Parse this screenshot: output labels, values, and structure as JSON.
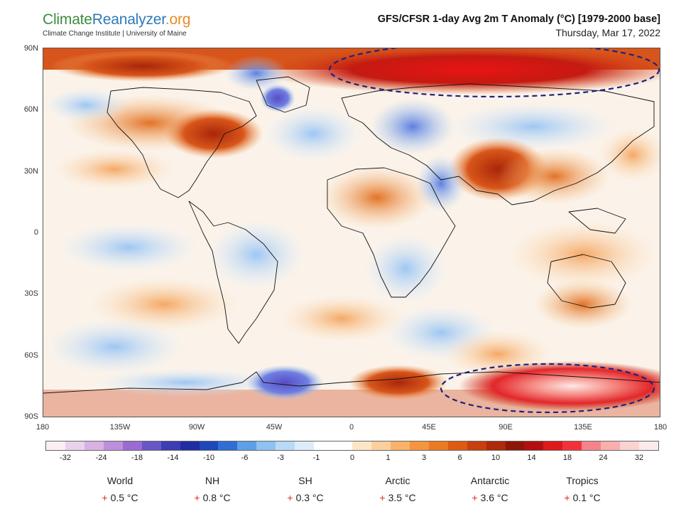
{
  "header": {
    "logo_part1": "Climate",
    "logo_part2": "Reanalyzer",
    "logo_part3": ".org",
    "logo_subtitle": "Climate Change Institute | University of Maine",
    "title": "GFS/CFSR 1-day Avg 2m T Anomaly (°C) [1979-2000 base]",
    "date": "Thursday, Mar 17, 2022"
  },
  "map": {
    "lat_labels": [
      "90N",
      "60N",
      "30N",
      "0",
      "30S",
      "60S",
      "90S"
    ],
    "lon_labels": [
      "180",
      "135W",
      "90W",
      "45W",
      "0",
      "45E",
      "90E",
      "135E",
      "180"
    ],
    "highlight_regions": [
      "arctic-warm-anomaly",
      "antarctic-warm-anomaly"
    ],
    "highlight_color": "#1a237e"
  },
  "legend": {
    "ticks": [
      "-32",
      "-24",
      "-18",
      "-14",
      "-10",
      "-6",
      "-3",
      "-1",
      "0",
      "1",
      "3",
      "6",
      "10",
      "14",
      "18",
      "24",
      "32"
    ],
    "colors": [
      "#fbeef5",
      "#ead2ea",
      "#d8b2e4",
      "#be8fdb",
      "#9b6bd0",
      "#6a55c4",
      "#3c3eb1",
      "#1f2da0",
      "#1f47b8",
      "#2f6fd4",
      "#5e9fe6",
      "#8fc2f0",
      "#b9daf6",
      "#dcecfa",
      "#ffffff",
      "#ffffff",
      "#fde6c8",
      "#fcd09c",
      "#f8b26b",
      "#f39541",
      "#eb7a22",
      "#dd5b13",
      "#c7400d",
      "#ad2a0a",
      "#8e1608",
      "#b30f10",
      "#dc1a1c",
      "#f2323a",
      "#f5848a",
      "#f7b0ad",
      "#fad3d0",
      "#fbeaec"
    ]
  },
  "stats": [
    {
      "name": "World",
      "value": "0.5 °C"
    },
    {
      "name": "NH",
      "value": "0.8 °C"
    },
    {
      "name": "SH",
      "value": "0.3 °C"
    },
    {
      "name": "Arctic",
      "value": "3.5 °C"
    },
    {
      "name": "Antarctic",
      "value": "3.6 °C"
    },
    {
      "name": "Tropics",
      "value": "0.1 °C"
    }
  ],
  "stat_sign": "+"
}
